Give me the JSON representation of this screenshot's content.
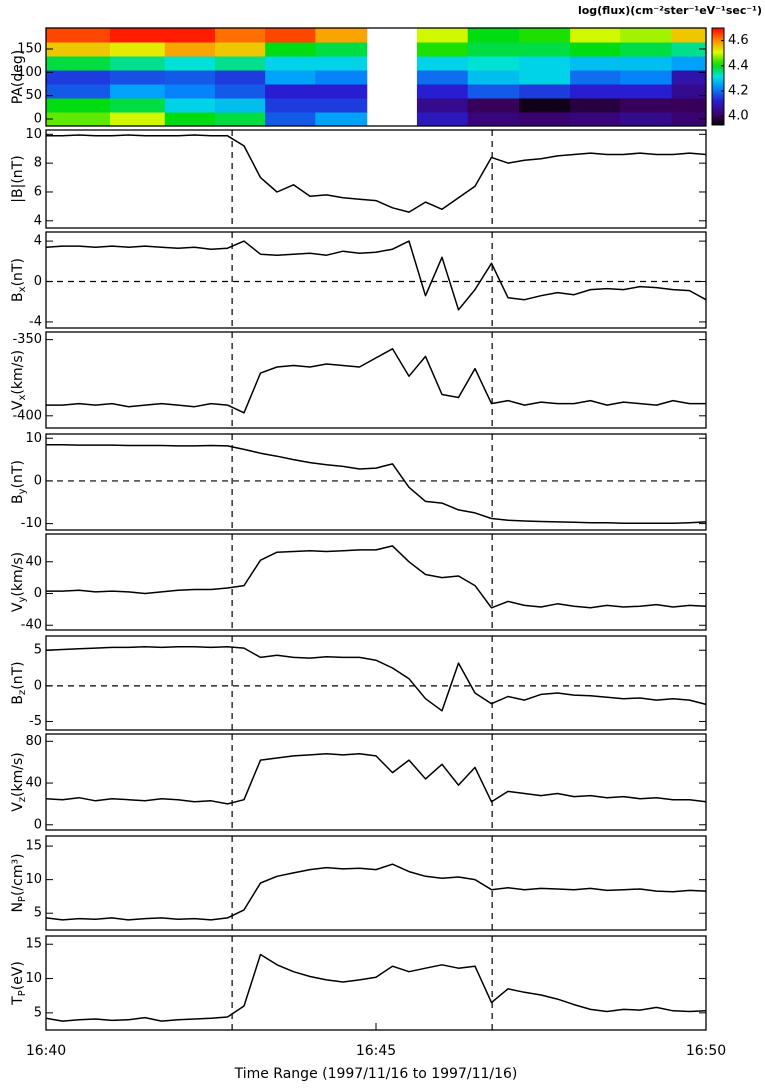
{
  "chart_data": [
    {
      "type": "heatmap",
      "ylabel": "PA(deg)",
      "x_edges": [
        0,
        0.97,
        1.8,
        2.56,
        3.32,
        4.08,
        4.86,
        5.62,
        6.39,
        7.17,
        7.94,
        8.7,
        9.48,
        10
      ],
      "y": [
        0,
        30,
        60,
        90,
        120,
        150,
        180
      ],
      "z": [
        [
          4.45,
          4.5,
          4.4,
          4.38,
          4.18,
          4.25,
          null,
          4.1,
          4.03,
          4.02,
          4.03,
          4.05,
          4.02
        ],
        [
          4.4,
          4.38,
          4.3,
          4.28,
          4.15,
          4.15,
          null,
          4.05,
          4.0,
          3.95,
          3.98,
          4.0,
          4.0
        ],
        [
          4.18,
          4.25,
          4.22,
          4.18,
          4.12,
          4.12,
          null,
          4.12,
          4.18,
          4.15,
          4.12,
          4.12,
          4.05
        ],
        [
          4.15,
          4.17,
          4.18,
          4.15,
          4.25,
          4.22,
          null,
          4.2,
          4.28,
          4.3,
          4.2,
          4.22,
          4.08
        ],
        [
          4.38,
          4.35,
          4.32,
          4.35,
          4.3,
          4.3,
          null,
          4.3,
          4.32,
          4.3,
          4.28,
          4.28,
          4.25
        ],
        [
          4.55,
          4.52,
          4.58,
          4.55,
          4.4,
          4.38,
          null,
          4.42,
          4.38,
          4.38,
          4.4,
          4.38,
          4.35
        ],
        [
          4.65,
          4.68,
          4.68,
          4.62,
          4.65,
          4.58,
          null,
          4.5,
          4.4,
          4.42,
          4.5,
          4.48,
          4.55
        ]
      ],
      "xlim": [
        0,
        10
      ],
      "ylim": [
        -15,
        195
      ],
      "yticks": [
        0,
        50,
        100,
        150
      ],
      "colormap": "rainbow",
      "colorbar": {
        "title": "log(flux)(cm⁻²ster⁻¹eV⁻¹sec⁻¹)",
        "zlim": [
          3.93,
          4.7
        ],
        "ticks": [
          {
            "value": 4,
            "label": "4.0"
          },
          4.2,
          4.4,
          4.6
        ]
      }
    },
    {
      "type": "line",
      "ylabel": "|B|(nT)",
      "color": "#000000",
      "xlim": [
        0,
        10
      ],
      "ylim": [
        3.5,
        10.3
      ],
      "yticks": [
        4,
        6,
        8,
        10
      ],
      "vlines": [
        2.82,
        6.76
      ],
      "x": [
        0,
        0.25,
        0.5,
        0.75,
        1,
        1.25,
        1.5,
        1.75,
        2,
        2.25,
        2.5,
        2.75,
        3,
        3.25,
        3.5,
        3.75,
        4,
        4.25,
        4.5,
        4.75,
        5,
        5.25,
        5.5,
        5.75,
        6,
        6.25,
        6.5,
        6.75,
        7,
        7.25,
        7.5,
        7.75,
        8,
        8.25,
        8.5,
        8.75,
        9,
        9.25,
        9.5,
        9.75,
        10
      ],
      "values": [
        9.9,
        9.9,
        9.95,
        9.9,
        9.9,
        9.95,
        9.9,
        9.9,
        9.9,
        9.95,
        9.9,
        9.9,
        9.2,
        7.0,
        6.0,
        6.5,
        5.7,
        5.8,
        5.6,
        5.5,
        5.4,
        4.9,
        4.6,
        5.3,
        4.8,
        5.6,
        6.4,
        8.4,
        8.0,
        8.2,
        8.3,
        8.5,
        8.6,
        8.7,
        8.6,
        8.6,
        8.7,
        8.6,
        8.6,
        8.7,
        8.6
      ]
    },
    {
      "type": "line",
      "ylabel": {
        "text": "B",
        "sub": "x",
        "unit": "(nT)"
      },
      "color": "#000000",
      "xlim": [
        0,
        10
      ],
      "ylim": [
        -4.6,
        4.9
      ],
      "yticks": [
        -4,
        0,
        4
      ],
      "hline": 0,
      "vlines": [
        2.82,
        6.76
      ],
      "x": [
        0,
        0.25,
        0.5,
        0.75,
        1,
        1.25,
        1.5,
        1.75,
        2,
        2.25,
        2.5,
        2.75,
        3,
        3.25,
        3.5,
        3.75,
        4,
        4.25,
        4.5,
        4.75,
        5,
        5.25,
        5.5,
        5.75,
        6,
        6.25,
        6.5,
        6.75,
        7,
        7.25,
        7.5,
        7.75,
        8,
        8.25,
        8.5,
        8.75,
        9,
        9.25,
        9.5,
        9.75,
        10
      ],
      "values": [
        3.4,
        3.5,
        3.5,
        3.4,
        3.5,
        3.4,
        3.5,
        3.4,
        3.3,
        3.4,
        3.2,
        3.3,
        4.0,
        2.7,
        2.6,
        2.7,
        2.8,
        2.6,
        3.0,
        2.8,
        2.9,
        3.2,
        4.0,
        -1.4,
        2.4,
        -2.8,
        -0.8,
        1.8,
        -1.6,
        -1.8,
        -1.4,
        -1.1,
        -1.3,
        -0.8,
        -0.7,
        -0.8,
        -0.5,
        -0.6,
        -0.8,
        -0.9,
        -1.8
      ]
    },
    {
      "type": "line",
      "ylabel": {
        "text": "V",
        "sub": "x",
        "unit": "(km/s)"
      },
      "color": "#000000",
      "xlim": [
        0,
        10
      ],
      "ylim": [
        -408,
        -345
      ],
      "yticks": [
        -400,
        -350
      ],
      "vlines": [
        2.82,
        6.76
      ],
      "x": [
        0,
        0.25,
        0.5,
        0.75,
        1,
        1.25,
        1.5,
        1.75,
        2,
        2.25,
        2.5,
        2.75,
        3,
        3.25,
        3.5,
        3.75,
        4,
        4.25,
        4.5,
        4.75,
        5,
        5.25,
        5.5,
        5.75,
        6,
        6.25,
        6.5,
        6.75,
        7,
        7.25,
        7.5,
        7.75,
        8,
        8.25,
        8.5,
        8.75,
        9,
        9.25,
        9.5,
        9.75,
        10
      ],
      "values": [
        -393,
        -393,
        -392,
        -393,
        -392,
        -394,
        -393,
        -392,
        -393,
        -394,
        -392,
        -393,
        -398,
        -372,
        -368,
        -367,
        -368,
        -366,
        -367,
        -368,
        -362,
        -356,
        -374,
        -361,
        -386,
        -388,
        -369,
        -392,
        -390,
        -393,
        -391,
        -392,
        -392,
        -390,
        -393,
        -391,
        -392,
        -393,
        -390,
        -392,
        -392
      ]
    },
    {
      "type": "line",
      "ylabel": {
        "text": "B",
        "sub": "y",
        "unit": "(nT)"
      },
      "color": "#000000",
      "xlim": [
        0,
        10
      ],
      "ylim": [
        -11.5,
        11
      ],
      "yticks": [
        -10,
        0,
        10
      ],
      "hline": 0,
      "vlines": [
        2.82,
        6.76
      ],
      "x": [
        0,
        0.25,
        0.5,
        0.75,
        1,
        1.25,
        1.5,
        1.75,
        2,
        2.25,
        2.5,
        2.75,
        3,
        3.25,
        3.5,
        3.75,
        4,
        4.25,
        4.5,
        4.75,
        5,
        5.25,
        5.5,
        5.75,
        6,
        6.25,
        6.5,
        6.75,
        7,
        7.25,
        7.5,
        7.75,
        8,
        8.25,
        8.5,
        8.75,
        9,
        9.25,
        9.5,
        9.75,
        10
      ],
      "values": [
        8.5,
        8.5,
        8.4,
        8.4,
        8.4,
        8.3,
        8.3,
        8.3,
        8.2,
        8.2,
        8.3,
        8.2,
        7.4,
        6.5,
        5.8,
        5.0,
        4.3,
        3.8,
        3.4,
        2.8,
        3.0,
        4.0,
        -1.5,
        -4.8,
        -5.2,
        -6.8,
        -7.5,
        -8.8,
        -9.2,
        -9.4,
        -9.5,
        -9.6,
        -9.7,
        -9.8,
        -9.8,
        -9.9,
        -9.9,
        -9.9,
        -9.9,
        -9.8,
        -9.6
      ]
    },
    {
      "type": "line",
      "ylabel": {
        "text": "V",
        "sub": "y",
        "unit": "(km/s)"
      },
      "color": "#000000",
      "xlim": [
        0,
        10
      ],
      "ylim": [
        -46,
        75
      ],
      "yticks": [
        -40,
        0,
        40
      ],
      "vlines": [
        2.82,
        6.76
      ],
      "x": [
        0,
        0.25,
        0.5,
        0.75,
        1,
        1.25,
        1.5,
        1.75,
        2,
        2.25,
        2.5,
        2.75,
        3,
        3.25,
        3.5,
        3.75,
        4,
        4.25,
        4.5,
        4.75,
        5,
        5.25,
        5.5,
        5.75,
        6,
        6.25,
        6.5,
        6.75,
        7,
        7.25,
        7.5,
        7.75,
        8,
        8.25,
        8.5,
        8.75,
        9,
        9.25,
        9.5,
        9.75,
        10
      ],
      "values": [
        3,
        3,
        4,
        2,
        3,
        2,
        0,
        2,
        4,
        5,
        5,
        7,
        10,
        42,
        52,
        53,
        54,
        53,
        54,
        55,
        55,
        60,
        40,
        24,
        20,
        22,
        10,
        -18,
        -10,
        -15,
        -17,
        -13,
        -16,
        -18,
        -15,
        -17,
        -16,
        -14,
        -17,
        -15,
        -16
      ]
    },
    {
      "type": "line",
      "ylabel": {
        "text": "B",
        "sub": "z",
        "unit": "(nT)"
      },
      "color": "#000000",
      "xlim": [
        0,
        10
      ],
      "ylim": [
        -6.2,
        7
      ],
      "yticks": [
        -5,
        0,
        5
      ],
      "hline": 0,
      "vlines": [
        2.82,
        6.76
      ],
      "x": [
        0,
        0.25,
        0.5,
        0.75,
        1,
        1.25,
        1.5,
        1.75,
        2,
        2.25,
        2.5,
        2.75,
        3,
        3.25,
        3.5,
        3.75,
        4,
        4.25,
        4.5,
        4.75,
        5,
        5.25,
        5.5,
        5.75,
        6,
        6.25,
        6.5,
        6.75,
        7,
        7.25,
        7.5,
        7.75,
        8,
        8.25,
        8.5,
        8.75,
        9,
        9.25,
        9.5,
        9.75,
        10
      ],
      "values": [
        5.0,
        5.1,
        5.2,
        5.3,
        5.4,
        5.4,
        5.5,
        5.4,
        5.5,
        5.5,
        5.4,
        5.5,
        5.3,
        4.0,
        4.3,
        4.0,
        3.9,
        4.1,
        4.0,
        4.0,
        3.6,
        2.5,
        1.0,
        -1.8,
        -3.5,
        3.2,
        -1.0,
        -2.5,
        -1.5,
        -2.0,
        -1.2,
        -1.0,
        -1.3,
        -1.4,
        -1.6,
        -1.8,
        -1.7,
        -2.0,
        -1.8,
        -2.0,
        -2.6
      ]
    },
    {
      "type": "line",
      "ylabel": {
        "text": "V",
        "sub": "z",
        "unit": "(km/s)"
      },
      "color": "#000000",
      "xlim": [
        0,
        10
      ],
      "ylim": [
        -5,
        87
      ],
      "yticks": [
        0,
        40,
        80
      ],
      "vlines": [
        2.82,
        6.76
      ],
      "x": [
        0,
        0.25,
        0.5,
        0.75,
        1,
        1.25,
        1.5,
        1.75,
        2,
        2.25,
        2.5,
        2.75,
        3,
        3.25,
        3.5,
        3.75,
        4,
        4.25,
        4.5,
        4.75,
        5,
        5.25,
        5.5,
        5.75,
        6,
        6.25,
        6.5,
        6.75,
        7,
        7.25,
        7.5,
        7.75,
        8,
        8.25,
        8.5,
        8.75,
        9,
        9.25,
        9.5,
        9.75,
        10
      ],
      "values": [
        25,
        24,
        26,
        23,
        25,
        24,
        23,
        25,
        24,
        22,
        23,
        20,
        24,
        62,
        64,
        66,
        67,
        68,
        67,
        68,
        66,
        50,
        62,
        44,
        58,
        38,
        55,
        22,
        32,
        30,
        28,
        30,
        27,
        28,
        26,
        27,
        25,
        26,
        24,
        24,
        22
      ]
    },
    {
      "type": "line",
      "ylabel": {
        "text": "N",
        "sub": "P",
        "unit": "(/cm³)"
      },
      "color": "#000000",
      "xlim": [
        0,
        10
      ],
      "ylim": [
        2.5,
        16.5
      ],
      "yticks": [
        5,
        10,
        15
      ],
      "vlines": [
        2.82,
        6.76
      ],
      "x": [
        0,
        0.25,
        0.5,
        0.75,
        1,
        1.25,
        1.5,
        1.75,
        2,
        2.25,
        2.5,
        2.75,
        3,
        3.25,
        3.5,
        3.75,
        4,
        4.25,
        4.5,
        4.75,
        5,
        5.25,
        5.5,
        5.75,
        6,
        6.25,
        6.5,
        6.75,
        7,
        7.25,
        7.5,
        7.75,
        8,
        8.25,
        8.5,
        8.75,
        9,
        9.25,
        9.5,
        9.75,
        10
      ],
      "values": [
        4.3,
        4.0,
        4.2,
        4.1,
        4.3,
        4.0,
        4.2,
        4.3,
        4.1,
        4.2,
        4.0,
        4.3,
        5.5,
        9.5,
        10.5,
        11,
        11.5,
        11.8,
        11.6,
        11.7,
        11.5,
        12.3,
        11.2,
        10.5,
        10.2,
        10.4,
        10.0,
        8.5,
        8.8,
        8.5,
        8.7,
        8.6,
        8.5,
        8.7,
        8.4,
        8.5,
        8.6,
        8.3,
        8.2,
        8.4,
        8.3
      ]
    },
    {
      "type": "line",
      "ylabel": {
        "text": "T",
        "sub": "P",
        "unit": "(eV)"
      },
      "color": "#000000",
      "xlim": [
        0,
        10
      ],
      "ylim": [
        2.5,
        16.2
      ],
      "yticks": [
        5,
        10,
        15
      ],
      "vlines": [
        2.82,
        6.76
      ],
      "xticks": [
        {
          "value": 0,
          "label": "16:40"
        },
        {
          "value": 5,
          "label": "16:45"
        },
        {
          "value": 10,
          "label": "16:50"
        }
      ],
      "xlabel": "Time Range (1997/11/16 to 1997/11/16)",
      "x": [
        0,
        0.25,
        0.5,
        0.75,
        1,
        1.25,
        1.5,
        1.75,
        2,
        2.25,
        2.5,
        2.75,
        3,
        3.25,
        3.5,
        3.75,
        4,
        4.25,
        4.5,
        4.75,
        5,
        5.25,
        5.5,
        5.75,
        6,
        6.25,
        6.5,
        6.75,
        7,
        7.25,
        7.5,
        7.75,
        8,
        8.25,
        8.5,
        8.75,
        9,
        9.25,
        9.5,
        9.75,
        10
      ],
      "values": [
        4.2,
        3.8,
        4.0,
        4.1,
        3.9,
        4.0,
        4.3,
        3.8,
        4.0,
        4.1,
        4.2,
        4.4,
        6.0,
        13.5,
        12,
        11,
        10.3,
        9.8,
        9.5,
        9.8,
        10.2,
        11.8,
        11.0,
        11.5,
        12.0,
        11.5,
        11.8,
        6.5,
        8.5,
        8.0,
        7.6,
        7.0,
        6.2,
        5.5,
        5.2,
        5.5,
        5.4,
        5.8,
        5.3,
        5.2,
        5.3
      ]
    }
  ]
}
